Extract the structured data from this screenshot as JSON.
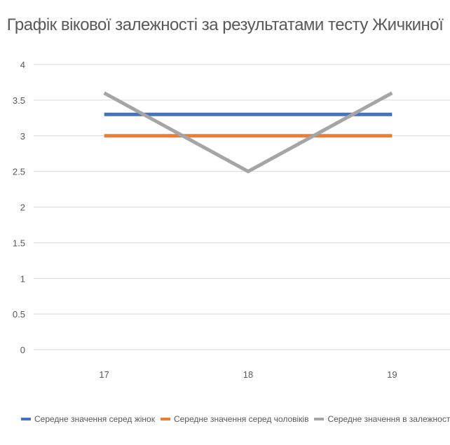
{
  "chart_data": {
    "type": "line",
    "title": "Графік вікової залежності за результатами тесту Жичкиної",
    "xlabel": "",
    "ylabel": "",
    "categories": [
      "17",
      "18",
      "19"
    ],
    "ylim": [
      0,
      4
    ],
    "y_ticks": [
      "0",
      "0.5",
      "1",
      "1.5",
      "2",
      "2.5",
      "3",
      "3.5",
      "4"
    ],
    "grid": true,
    "legend_position": "bottom",
    "series": [
      {
        "name": "Середне значення серед жінок",
        "color": "#4472C4",
        "values": [
          3.3,
          3.3,
          3.3
        ]
      },
      {
        "name": "Середне значення серед чоловіків",
        "color": "#ED7D31",
        "values": [
          3.0,
          3.0,
          3.0
        ]
      },
      {
        "name": "Середне значення в залежності від віку",
        "color": "#A5A5A5",
        "values": [
          3.6,
          2.5,
          3.6
        ]
      }
    ]
  }
}
